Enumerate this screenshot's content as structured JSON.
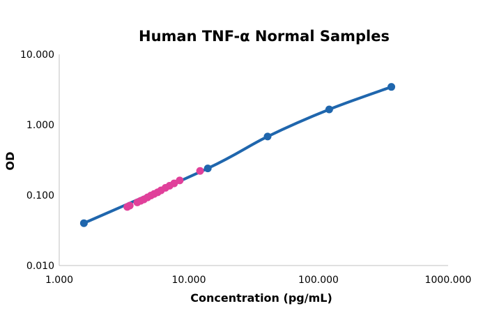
{
  "chart_data": {
    "type": "scatter",
    "title": "Human TNF-α Normal Samples",
    "xlabel": "Concentration (pg/mL)",
    "ylabel": "OD",
    "x_scale": "log",
    "y_scale": "log",
    "xlim": [
      1,
      1000
    ],
    "ylim": [
      0.01,
      10
    ],
    "x_ticks": [
      1,
      10,
      100,
      1000
    ],
    "x_tick_labels": [
      "1.000",
      "10.000",
      "100.000",
      "1000.000"
    ],
    "y_ticks": [
      0.01,
      0.1,
      1,
      10
    ],
    "y_tick_labels": [
      "0.010",
      "0.100",
      "1.000",
      "10.000"
    ],
    "grid": false,
    "colors": {
      "curve": "#1f66ad",
      "standards": "#1f66ad",
      "samples": "#e0409a",
      "axis": "#c0c0c0"
    },
    "series": [
      {
        "role": "standard-curve",
        "x": [
          1.55,
          14.0,
          40.5,
          121.0,
          365.0
        ],
        "y": [
          0.04,
          0.24,
          0.68,
          1.65,
          3.45
        ]
      },
      {
        "role": "samples",
        "x": [
          3.35,
          3.5,
          4.0,
          4.25,
          4.5,
          4.8,
          5.1,
          5.4,
          5.75,
          6.1,
          6.6,
          7.1,
          7.7,
          8.5,
          12.2
        ],
        "y": [
          0.068,
          0.071,
          0.079,
          0.083,
          0.087,
          0.093,
          0.099,
          0.104,
          0.11,
          0.117,
          0.127,
          0.136,
          0.147,
          0.162,
          0.221
        ]
      }
    ]
  }
}
